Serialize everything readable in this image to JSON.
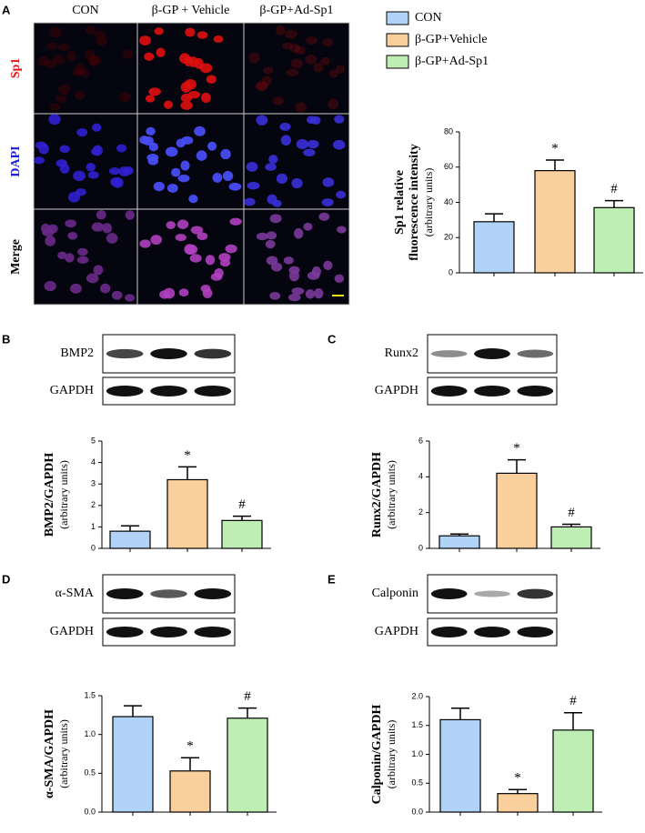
{
  "microscopy": {
    "columns": [
      "CON",
      "β-GP + Vehicle",
      "β-GP+Ad-Sp1"
    ],
    "rows": [
      {
        "label": "Sp1",
        "color": "#e8141c"
      },
      {
        "label": "DAPI",
        "color": "#1d20d6"
      },
      {
        "label": "Merge",
        "color": "#000000"
      }
    ]
  },
  "legend": [
    {
      "name": "CON",
      "color": "#b0d3f7"
    },
    {
      "name": "β-GP+Vehicle",
      "color": "#f9cf9c"
    },
    {
      "name": "β-GP+Ad-Sp1",
      "color": "#bfeeb4"
    }
  ],
  "chart_data": [
    {
      "type": "bar",
      "panel": "A",
      "ylabel": [
        "Sp1 relative",
        "fluorescence intensity"
      ],
      "ylabel_sub": "(arbitrary units)",
      "values": [
        29,
        58,
        37
      ],
      "errors": [
        4.5,
        6,
        4
      ],
      "colors": [
        "#b0d3f7",
        "#f9cf9c",
        "#bfeeb4"
      ],
      "annotations": [
        null,
        "*",
        "#"
      ],
      "ylim": [
        0,
        80
      ],
      "yticks": [
        0,
        20,
        40,
        60,
        80
      ]
    },
    {
      "type": "bar",
      "panel": "B",
      "blots": [
        "BMP2",
        "GAPDH"
      ],
      "ylabel": [
        "BMP2/GAPDH"
      ],
      "ylabel_sub": "(arbitrary units)",
      "values": [
        0.8,
        3.2,
        1.3
      ],
      "errors": [
        0.25,
        0.6,
        0.2
      ],
      "colors": [
        "#b0d3f7",
        "#f9cf9c",
        "#bfeeb4"
      ],
      "annotations": [
        null,
        "*",
        "#"
      ],
      "ylim": [
        0,
        5
      ],
      "yticks": [
        0,
        1,
        2,
        3,
        4,
        5
      ]
    },
    {
      "type": "bar",
      "panel": "C",
      "blots": [
        "Runx2",
        "GAPDH"
      ],
      "ylabel": [
        "Runx2/GAPDH"
      ],
      "ylabel_sub": "(arbitrary units)",
      "values": [
        0.7,
        4.2,
        1.2
      ],
      "errors": [
        0.1,
        0.75,
        0.15
      ],
      "colors": [
        "#b0d3f7",
        "#f9cf9c",
        "#bfeeb4"
      ],
      "annotations": [
        null,
        "*",
        "#"
      ],
      "ylim": [
        0,
        6
      ],
      "yticks": [
        0,
        2,
        4,
        6
      ]
    },
    {
      "type": "bar",
      "panel": "D",
      "blots": [
        "α-SMA",
        "GAPDH"
      ],
      "ylabel": [
        "α-SMA/GAPDH"
      ],
      "ylabel_sub": "(arbitrary units)",
      "values": [
        1.23,
        0.53,
        1.21
      ],
      "errors": [
        0.14,
        0.17,
        0.13
      ],
      "colors": [
        "#b0d3f7",
        "#f9cf9c",
        "#bfeeb4"
      ],
      "annotations": [
        null,
        "*",
        "#"
      ],
      "ylim": [
        0,
        1.5
      ],
      "yticks": [
        {
          "value": 0,
          "label": "0.0"
        },
        0.5,
        {
          "value": 1,
          "label": "1.0"
        },
        1.5
      ]
    },
    {
      "type": "bar",
      "panel": "E",
      "blots": [
        "Calponin",
        "GAPDH"
      ],
      "ylabel": [
        "Calponin/GAPDH"
      ],
      "ylabel_sub": "(arbitrary units)",
      "values": [
        1.6,
        0.32,
        1.42
      ],
      "errors": [
        0.2,
        0.07,
        0.3
      ],
      "colors": [
        "#b0d3f7",
        "#f9cf9c",
        "#bfeeb4"
      ],
      "annotations": [
        null,
        "*",
        "#"
      ],
      "ylim": [
        0,
        2
      ],
      "yticks": [
        {
          "value": 0,
          "label": "0.0"
        },
        0.5,
        {
          "value": 1,
          "label": "1.0"
        },
        1.5,
        {
          "value": 2,
          "label": "2.0"
        }
      ]
    }
  ]
}
